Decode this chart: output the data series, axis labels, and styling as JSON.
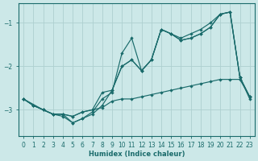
{
  "xlabel": "Humidex (Indice chaleur)",
  "ylabel": "",
  "bg_color": "#cce8e8",
  "grid_color": "#aed0d0",
  "line_color": "#1a6b6b",
  "xlim": [
    -0.5,
    23.5
  ],
  "ylim": [
    -3.6,
    -0.55
  ],
  "yticks": [
    -3,
    -2,
    -1
  ],
  "xticks": [
    0,
    1,
    2,
    3,
    4,
    5,
    6,
    7,
    8,
    9,
    10,
    11,
    12,
    13,
    14,
    15,
    16,
    17,
    18,
    19,
    20,
    21,
    22,
    23
  ],
  "series": [
    {
      "x": [
        0,
        1,
        2,
        3,
        4,
        5,
        6,
        7,
        8,
        9,
        10,
        11,
        12,
        13,
        14,
        15,
        16,
        17,
        18,
        19,
        20,
        21,
        22,
        23
      ],
      "y": [
        -2.75,
        -2.9,
        -3.0,
        -3.1,
        -3.1,
        -3.15,
        -3.05,
        -3.0,
        -2.95,
        -2.8,
        -2.75,
        -2.75,
        -2.7,
        -2.65,
        -2.6,
        -2.55,
        -2.5,
        -2.45,
        -2.4,
        -2.35,
        -2.3,
        -2.3,
        -2.3,
        -2.7
      ]
    },
    {
      "x": [
        0,
        1,
        2,
        3,
        4,
        5,
        6,
        7,
        8,
        9,
        10,
        11,
        12,
        13,
        14,
        15,
        16,
        17,
        18,
        19,
        20,
        21,
        22,
        23
      ],
      "y": [
        -2.75,
        -2.9,
        -3.0,
        -3.1,
        -3.1,
        -3.15,
        -3.05,
        -3.0,
        -2.6,
        -2.55,
        -2.0,
        -1.85,
        -2.1,
        -1.85,
        -1.15,
        -1.25,
        -1.4,
        -1.35,
        -1.25,
        -1.1,
        -0.8,
        -0.75,
        -2.25,
        -2.7
      ]
    },
    {
      "x": [
        0,
        1,
        2,
        3,
        4,
        5,
        6,
        7,
        8,
        9,
        10,
        11,
        12,
        13,
        14,
        15,
        16,
        17,
        18,
        19,
        20,
        21,
        22,
        23
      ],
      "y": [
        -2.75,
        -2.9,
        -3.0,
        -3.1,
        -3.1,
        -3.3,
        -3.2,
        -3.1,
        -2.9,
        -2.55,
        -2.0,
        -1.85,
        -2.1,
        -1.85,
        -1.15,
        -1.25,
        -1.4,
        -1.35,
        -1.25,
        -1.1,
        -0.8,
        -0.75,
        -2.25,
        -2.7
      ]
    },
    {
      "x": [
        0,
        2,
        3,
        4,
        5,
        6,
        7,
        8,
        9,
        10,
        11,
        12,
        13,
        14,
        15,
        16,
        17,
        18,
        19,
        20,
        21,
        22,
        23
      ],
      "y": [
        -2.75,
        -3.0,
        -3.1,
        -3.15,
        -3.3,
        -3.2,
        -3.05,
        -2.75,
        -2.6,
        -1.7,
        -1.35,
        -2.1,
        -1.85,
        -1.15,
        -1.25,
        -1.35,
        -1.25,
        -1.15,
        -1.0,
        -0.8,
        -0.75,
        -2.25,
        -2.75
      ]
    }
  ]
}
